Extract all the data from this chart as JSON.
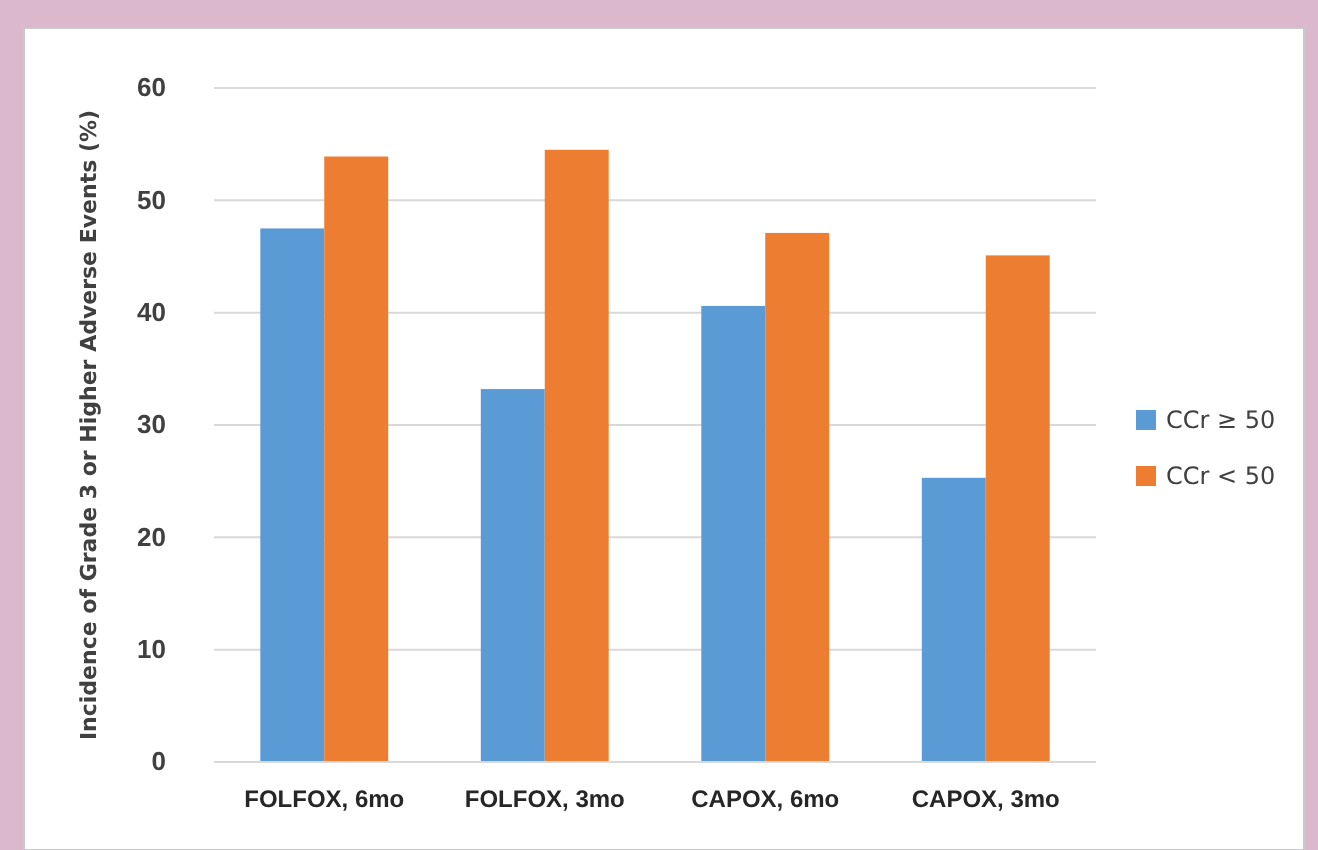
{
  "chart_data": {
    "type": "bar",
    "ylabel": "Incidence of Grade 3 or Higher Adverse Events (%)",
    "categories": [
      "FOLFOX, 6mo",
      "FOLFOX, 3mo",
      "CAPOX, 6mo",
      "CAPOX, 3mo"
    ],
    "series": [
      {
        "name": "CCr ≥ 50",
        "color": "#5b9bd5",
        "values": [
          47.5,
          33.2,
          40.6,
          25.3
        ]
      },
      {
        "name": "CCr < 50",
        "color": "#ed7d31",
        "values": [
          53.9,
          54.5,
          47.1,
          45.1
        ]
      }
    ],
    "ylim": [
      0,
      60
    ],
    "yticks": [
      0,
      10,
      20,
      30,
      40,
      50,
      60
    ],
    "grid": "y",
    "legend": "right"
  }
}
